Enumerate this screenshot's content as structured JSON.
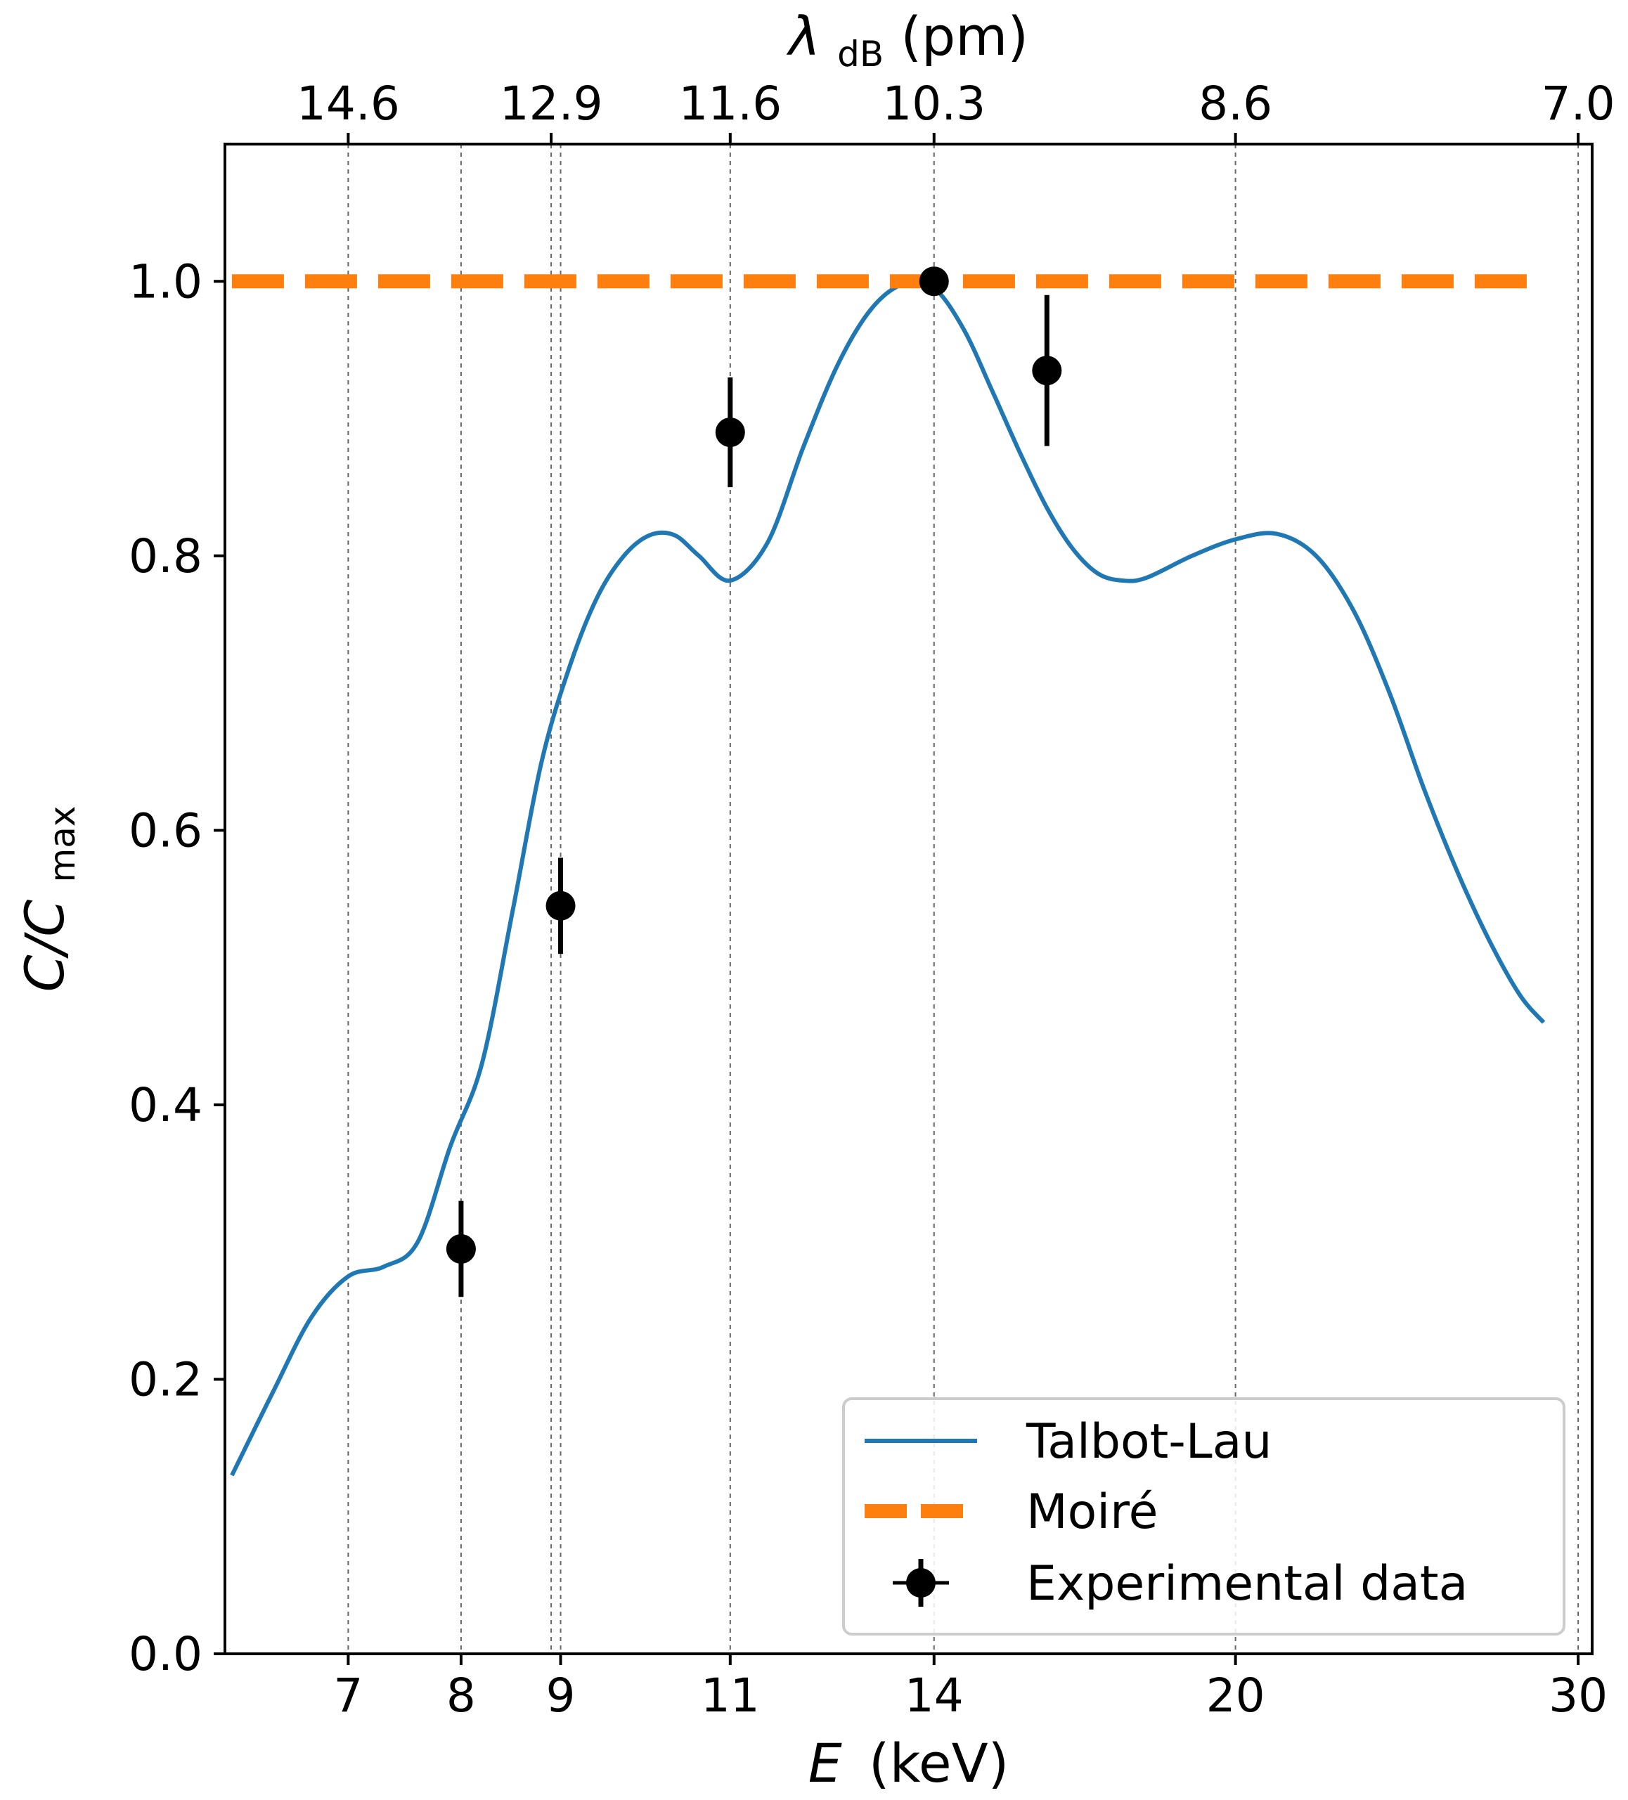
{
  "chart_data": {
    "type": "line",
    "title": "",
    "xlabel": {
      "symbol": "E",
      "unit": "(keV)"
    },
    "ylabel": {
      "symbol": "C/C",
      "subscript": "max"
    },
    "top_xlabel": {
      "symbol": "λ",
      "subscript": "dB",
      "unit": "(pm)"
    },
    "x_scale": "log",
    "xlim": [
      6.05,
      30.5
    ],
    "ylim": [
      0.0,
      1.1
    ],
    "x_ticks": [
      7,
      8,
      9,
      11,
      14,
      20,
      30
    ],
    "x_tick_labels": [
      "7",
      "8",
      "9",
      "11",
      "14",
      "20",
      "30"
    ],
    "y_ticks": [
      0.0,
      0.2,
      0.4,
      0.6,
      0.8,
      1.0
    ],
    "y_tick_labels": [
      "0.0",
      "0.2",
      "0.4",
      "0.6",
      "0.8",
      "1.0"
    ],
    "top_ticks_energy": [
      7,
      8.9,
      11,
      14,
      20,
      30
    ],
    "top_tick_labels": [
      "14.6",
      "12.9",
      "11.6",
      "10.3",
      "8.6",
      "7.0"
    ],
    "grid": "vertical dotted lines at top and bottom tick positions",
    "legend_position": "lower-right",
    "series": [
      {
        "name": "Talbot-Lau",
        "style": "line",
        "color": "#1f77b4",
        "x": [
          6.1,
          6.4,
          6.7,
          7.0,
          7.3,
          7.6,
          7.9,
          8.2,
          8.5,
          8.8,
          9.1,
          9.4,
          9.7,
          10.0,
          10.3,
          10.6,
          11.0,
          11.5,
          12.0,
          12.5,
          13.0,
          13.5,
          14.0,
          14.5,
          15.0,
          15.5,
          16.0,
          16.5,
          17.0,
          17.5,
          18.0,
          19.0,
          20.0,
          21.0,
          22.0,
          23.0,
          24.0,
          25.0,
          26.0,
          27.0,
          28.0,
          28.8
        ],
        "y": [
          0.13,
          0.19,
          0.245,
          0.275,
          0.282,
          0.3,
          0.37,
          0.43,
          0.54,
          0.65,
          0.72,
          0.77,
          0.8,
          0.815,
          0.815,
          0.8,
          0.782,
          0.81,
          0.88,
          0.94,
          0.98,
          0.998,
          0.995,
          0.965,
          0.92,
          0.875,
          0.835,
          0.805,
          0.787,
          0.782,
          0.784,
          0.8,
          0.812,
          0.816,
          0.8,
          0.76,
          0.7,
          0.63,
          0.57,
          0.52,
          0.48,
          0.46
        ]
      },
      {
        "name": "Moiré",
        "style": "dashed",
        "color": "#ff7f0e",
        "x": [
          6.1,
          28.8
        ],
        "y": [
          1.0,
          1.0
        ]
      },
      {
        "name": "Experimental data",
        "style": "errorbar",
        "color": "#000000",
        "x": [
          8.0,
          9.0,
          11.0,
          14.0,
          16.0
        ],
        "y": [
          0.295,
          0.545,
          0.89,
          1.0,
          0.935
        ],
        "yerr": [
          0.035,
          0.035,
          0.04,
          0.0,
          0.055
        ]
      }
    ]
  }
}
